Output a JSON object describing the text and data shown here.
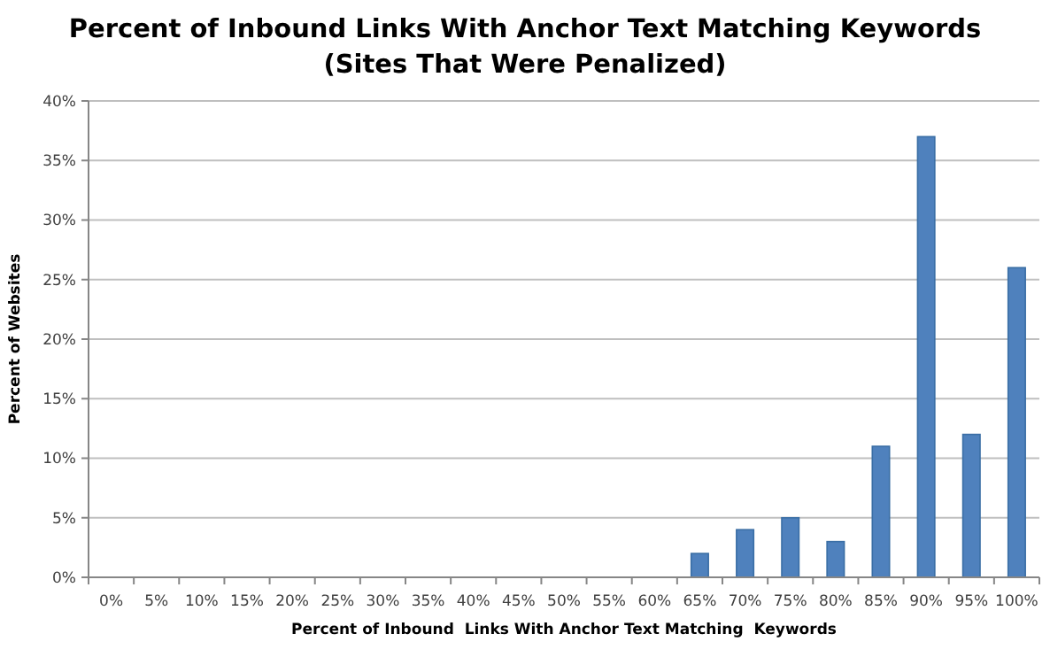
{
  "chart_data": {
    "type": "bar",
    "title": "Percent of Inbound Links With Anchor Text Matching Keywords",
    "subtitle": "(Sites That Were Penalized)",
    "xlabel": "Percent of Inbound  Links With Anchor Text Matching  Keywords",
    "ylabel": "Percent of Websites",
    "categories": [
      "0%",
      "5%",
      "10%",
      "15%",
      "20%",
      "25%",
      "30%",
      "35%",
      "40%",
      "45%",
      "50%",
      "55%",
      "60%",
      "65%",
      "70%",
      "75%",
      "80%",
      "85%",
      "90%",
      "95%",
      "100%"
    ],
    "values": [
      0,
      0,
      0,
      0,
      0,
      0,
      0,
      0,
      0,
      0,
      0,
      0,
      0,
      2,
      4,
      5,
      3,
      11,
      37,
      12,
      26
    ],
    "color": "#4f81bd",
    "ylim": [
      0,
      40
    ],
    "yticks": [
      {
        "value": 0,
        "label": "0%"
      },
      {
        "value": 5,
        "label": "5%"
      },
      {
        "value": 10,
        "label": "10%"
      },
      {
        "value": 15,
        "label": "15%"
      },
      {
        "value": 20,
        "label": "20%"
      },
      {
        "value": 25,
        "label": "25%"
      },
      {
        "value": 30,
        "label": "30%"
      },
      {
        "value": 35,
        "label": "35%"
      },
      {
        "value": 40,
        "label": "40%"
      }
    ],
    "grid": "y"
  }
}
